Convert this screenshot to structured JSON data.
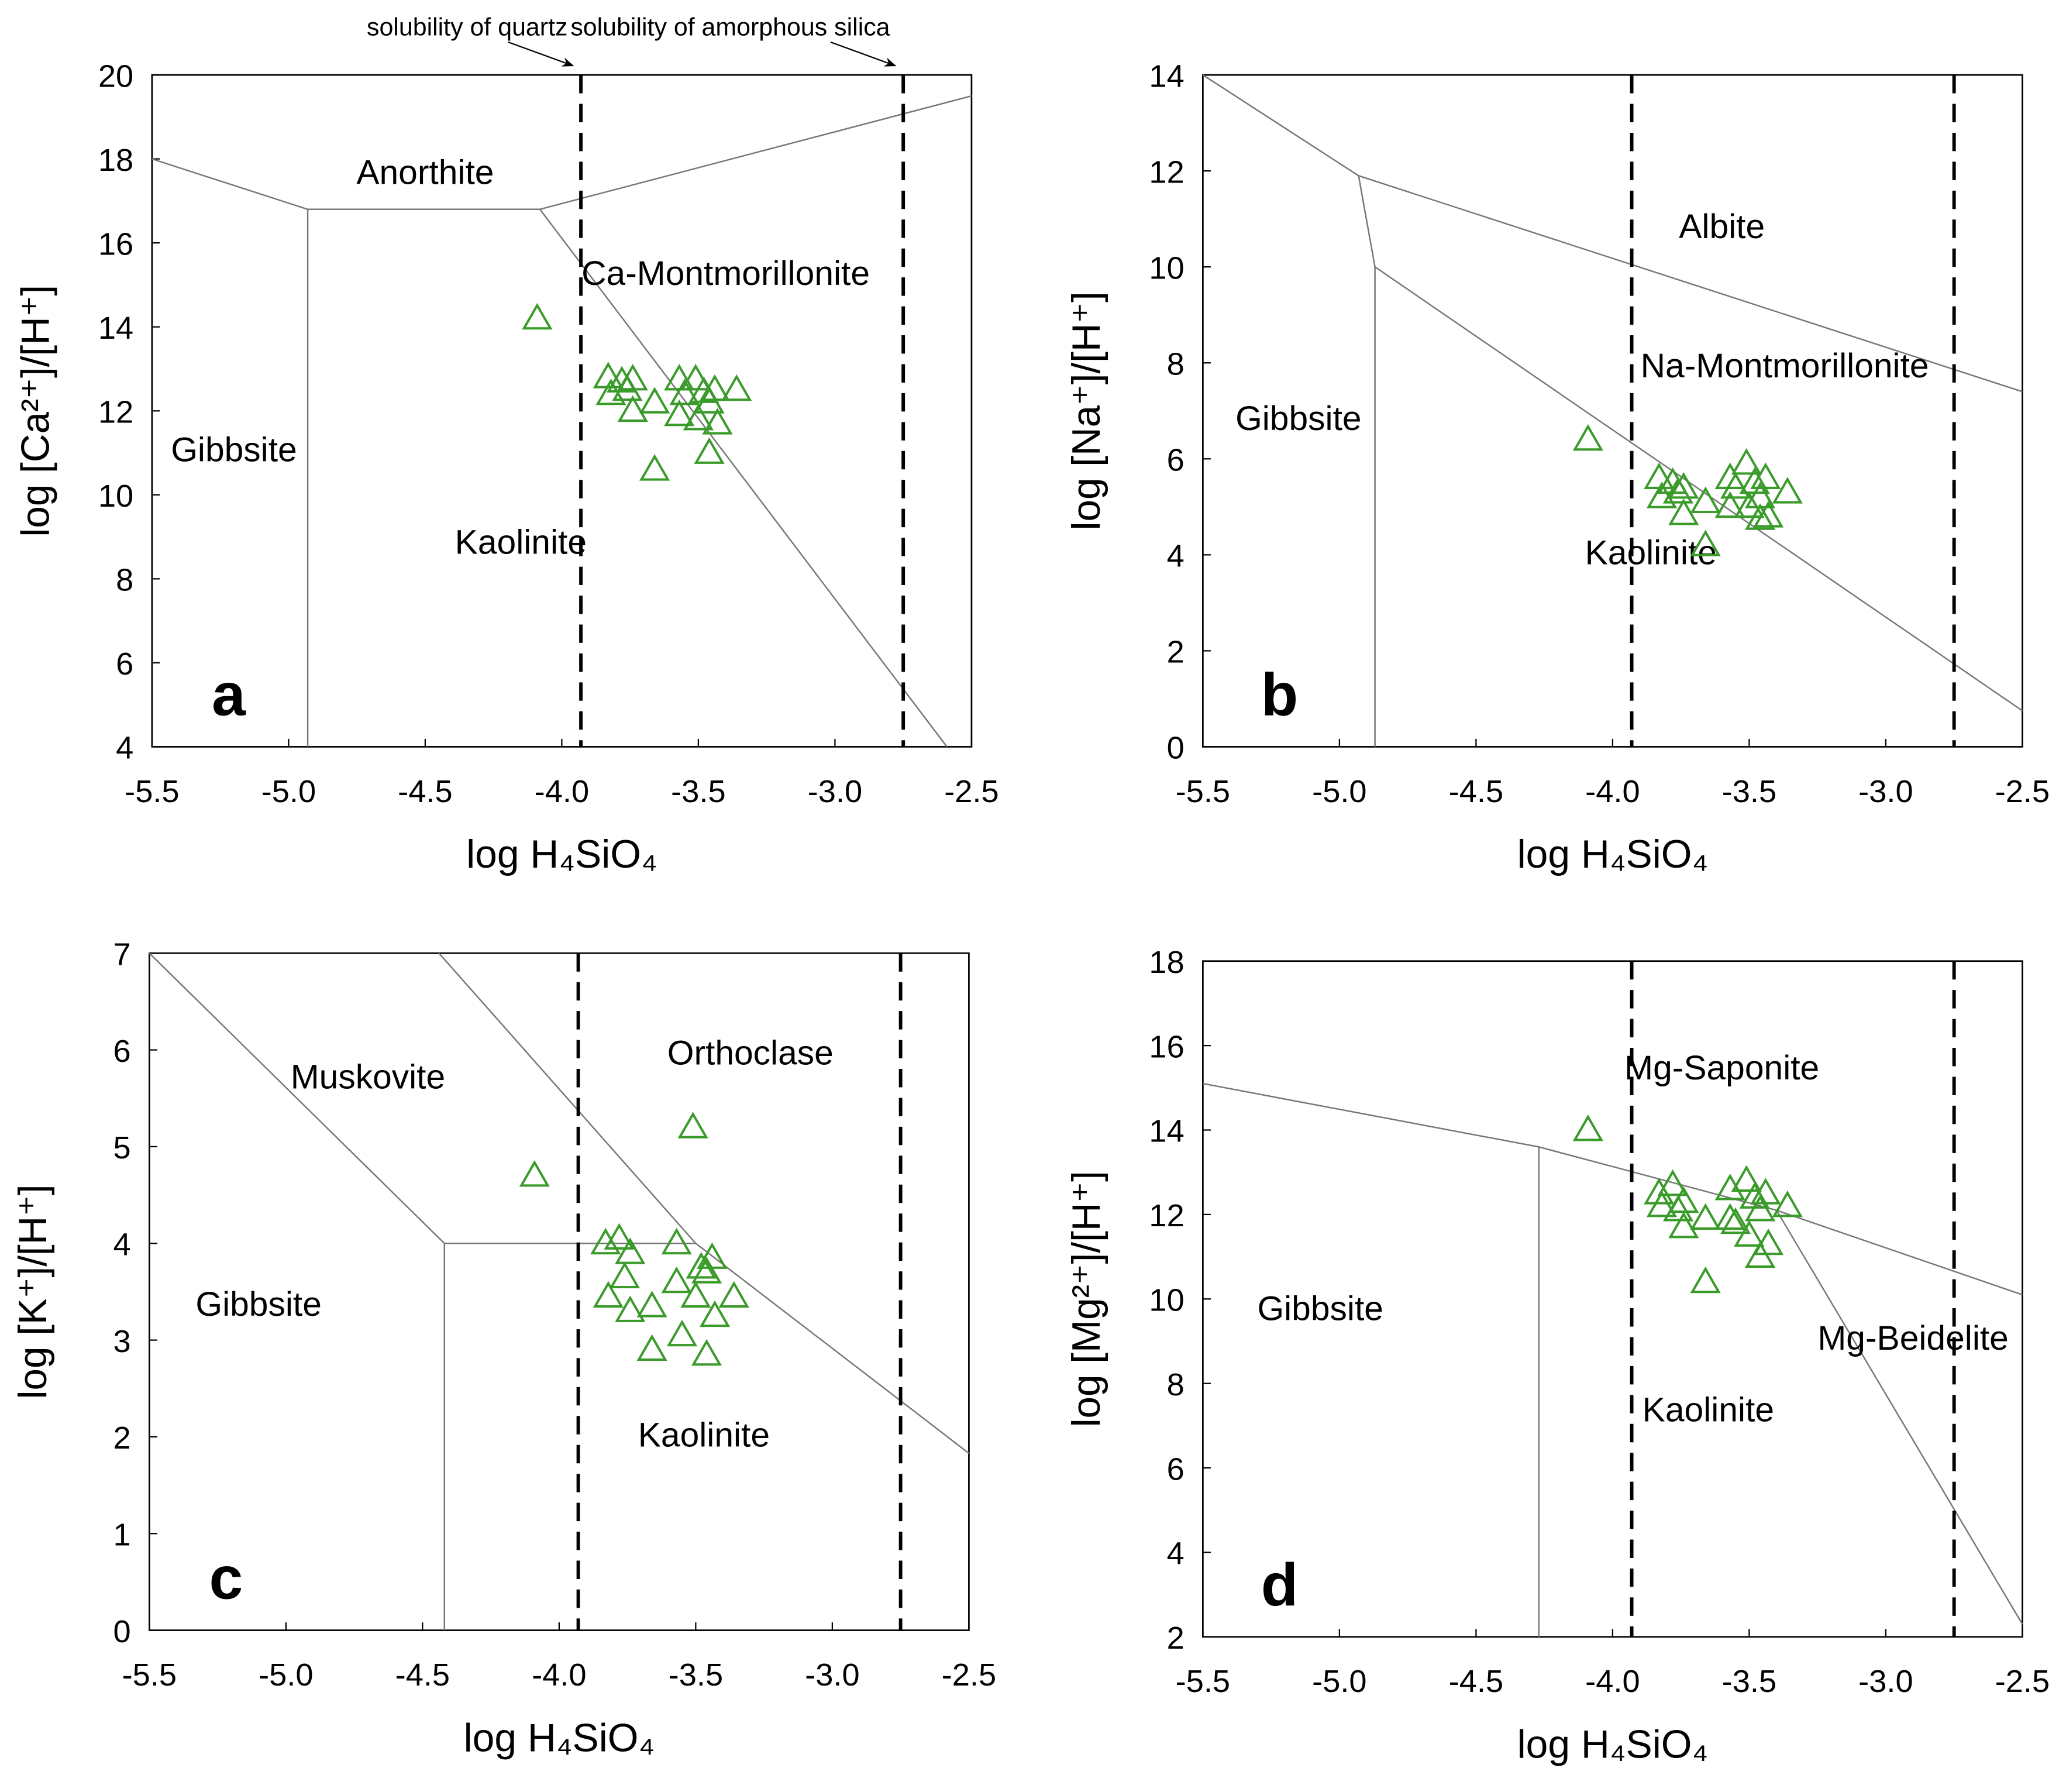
{
  "chart_data": [
    {
      "type": "scatter",
      "panel_label": "a",
      "xlabel": "log H₄SiO₄",
      "ylabel": "log [Ca²⁺]/[H⁺]",
      "xlim": [
        -5.5,
        -2.5
      ],
      "ylim": [
        4,
        20
      ],
      "xticks": [
        -5.5,
        {
          "value": -5,
          "label": "-5.0"
        },
        -4.5,
        {
          "value": -4,
          "label": "-4.0"
        },
        -3.5,
        {
          "value": -3,
          "label": "-3.0"
        },
        -2.5
      ],
      "yticks": [
        4,
        6,
        8,
        10,
        12,
        14,
        16,
        18,
        20
      ],
      "marker_color": "#3a9b2a",
      "x": [
        -4.09,
        -3.83,
        -3.82,
        -3.78,
        -3.74,
        -3.74,
        -3.76,
        -3.66,
        -3.66,
        -3.57,
        -3.55,
        -3.51,
        -3.5,
        -3.48,
        -3.46,
        -3.44,
        -3.43,
        -3.46,
        -3.36,
        -3.57
      ],
      "values": [
        14.2,
        12.8,
        12.4,
        12.7,
        12.75,
        12.0,
        12.5,
        12.2,
        10.6,
        12.75,
        12.4,
        12.75,
        11.8,
        12.45,
        12.2,
        12.5,
        11.7,
        11.0,
        12.5,
        11.9
      ],
      "vlines": [
        -3.93,
        -2.75
      ],
      "annotations": [
        {
          "text": "solubility of quartz",
          "x": -3.93
        },
        {
          "text": "solubility of amorphous silica",
          "x": -2.75
        }
      ],
      "boundaries": [
        {
          "x": [
            -5.5,
            -4.93,
            -4.08,
            -2.5
          ],
          "y": [
            18,
            16.8,
            16.8,
            19.5
          ]
        },
        {
          "x": [
            -4.93,
            -4.93
          ],
          "y": [
            16.8,
            4
          ]
        },
        {
          "x": [
            -4.08,
            -2.59
          ],
          "y": [
            16.8,
            4
          ]
        }
      ],
      "regions": [
        {
          "label": "Anorthite",
          "x": -4.5,
          "y": 17.4
        },
        {
          "label": "Ca-Montmorillonite",
          "x": -3.4,
          "y": 15.0
        },
        {
          "label": "Gibbsite",
          "x": -5.2,
          "y": 10.8
        },
        {
          "label": "Kaolinite",
          "x": -4.15,
          "y": 8.6
        }
      ]
    },
    {
      "type": "scatter",
      "panel_label": "b",
      "xlabel": "log H₄SiO₄",
      "ylabel": "log [Na⁺]/[H⁺]",
      "xlim": [
        -5.5,
        -2.5
      ],
      "ylim": [
        0,
        14
      ],
      "xticks": [
        -5.5,
        {
          "value": -5,
          "label": "-5.0"
        },
        -4.5,
        {
          "value": -4,
          "label": "-4.0"
        },
        -3.5,
        {
          "value": -3,
          "label": "-3.0"
        },
        -2.5
      ],
      "yticks": [
        0,
        2,
        4,
        6,
        8,
        10,
        12,
        14
      ],
      "marker_color": "#3a9b2a",
      "x": [
        -4.09,
        -3.83,
        -3.82,
        -3.78,
        -3.74,
        -3.74,
        -3.76,
        -3.66,
        -3.66,
        -3.57,
        -3.55,
        -3.51,
        -3.5,
        -3.48,
        -3.46,
        -3.44,
        -3.43,
        -3.46,
        -3.36,
        -3.57
      ],
      "values": [
        6.4,
        5.6,
        5.2,
        5.5,
        5.4,
        4.85,
        5.3,
        5.1,
        4.2,
        5.6,
        5.4,
        5.9,
        5.0,
        5.5,
        5.2,
        5.6,
        4.8,
        4.75,
        5.3,
        5.0
      ],
      "vlines": [
        -3.93,
        -2.75
      ],
      "boundaries": [
        {
          "x": [
            -5.5,
            -4.93,
            -2.5
          ],
          "y": [
            14,
            11.9,
            7.4
          ]
        },
        {
          "x": [
            -4.93,
            -4.87,
            -2.5
          ],
          "y": [
            11.9,
            10,
            0.75
          ]
        },
        {
          "x": [
            -4.87,
            -4.87
          ],
          "y": [
            10,
            0
          ]
        }
      ],
      "regions": [
        {
          "label": "Albite",
          "x": -3.6,
          "y": 10.6
        },
        {
          "label": "Na-Montmorillonite",
          "x": -3.37,
          "y": 7.7
        },
        {
          "label": "Gibbsite",
          "x": -5.15,
          "y": 6.6
        },
        {
          "label": "Kaolinite",
          "x": -3.86,
          "y": 3.8
        }
      ]
    },
    {
      "type": "scatter",
      "panel_label": "c",
      "xlabel": "log H₄SiO₄",
      "ylabel": "log [K⁺]/[H⁺]",
      "xlim": [
        -5.5,
        -2.5
      ],
      "ylim": [
        0,
        7
      ],
      "xticks": [
        -5.5,
        {
          "value": -5,
          "label": "-5.0"
        },
        -4.5,
        {
          "value": -4,
          "label": "-4.0"
        },
        -3.5,
        {
          "value": -3,
          "label": "-3.0"
        },
        -2.5
      ],
      "yticks": [
        0,
        1,
        2,
        3,
        4,
        5,
        6,
        7
      ],
      "marker_color": "#3a9b2a",
      "x": [
        -4.09,
        -3.83,
        -3.82,
        -3.78,
        -3.74,
        -3.74,
        -3.76,
        -3.66,
        -3.66,
        -3.57,
        -3.55,
        -3.51,
        -3.5,
        -3.48,
        -3.46,
        -3.44,
        -3.43,
        -3.46,
        -3.36,
        -3.57
      ],
      "values": [
        4.7,
        4.0,
        3.45,
        4.05,
        3.9,
        3.3,
        3.65,
        3.35,
        2.9,
        4.0,
        3.05,
        5.2,
        3.45,
        3.75,
        3.7,
        3.85,
        3.25,
        2.85,
        3.45,
        3.6
      ],
      "vlines": [
        -3.93,
        -2.75
      ],
      "boundaries": [
        {
          "x": [
            -5.5,
            -4.42,
            -3.5
          ],
          "y": [
            7,
            4,
            4
          ]
        },
        {
          "x": [
            -4.44,
            -3.5,
            -2.5
          ],
          "y": [
            7,
            4,
            1.83
          ]
        },
        {
          "x": [
            -4.42,
            -4.42
          ],
          "y": [
            4,
            0
          ]
        }
      ],
      "regions": [
        {
          "label": "Muskovite",
          "x": -4.7,
          "y": 5.6
        },
        {
          "label": "Orthoclase",
          "x": -3.3,
          "y": 5.85
        },
        {
          "label": "Gibbsite",
          "x": -5.1,
          "y": 3.25
        },
        {
          "label": "Kaolinite",
          "x": -3.47,
          "y": 1.9
        }
      ]
    },
    {
      "type": "scatter",
      "panel_label": "d",
      "xlabel": "log H₄SiO₄",
      "ylabel": "log [Mg²⁺]/[H⁺]",
      "xlim": [
        -5.5,
        -2.5
      ],
      "ylim": [
        2,
        18
      ],
      "xticks": [
        -5.5,
        {
          "value": -5,
          "label": "-5.0"
        },
        -4.5,
        {
          "value": -4,
          "label": "-4.0"
        },
        -3.5,
        {
          "value": -3,
          "label": "-3.0"
        },
        -2.5
      ],
      "yticks": [
        2,
        4,
        6,
        8,
        10,
        12,
        14,
        16,
        18
      ],
      "marker_color": "#3a9b2a",
      "x": [
        -4.09,
        -3.83,
        -3.82,
        -3.78,
        -3.74,
        -3.74,
        -3.76,
        -3.66,
        -3.66,
        -3.57,
        -3.55,
        -3.51,
        -3.5,
        -3.48,
        -3.46,
        -3.44,
        -3.43,
        -3.46,
        -3.36,
        -3.57
      ],
      "values": [
        14.0,
        12.5,
        12.2,
        12.7,
        12.3,
        11.7,
        12.1,
        11.9,
        10.4,
        12.6,
        11.8,
        12.8,
        11.5,
        12.4,
        12.1,
        12.5,
        11.3,
        11.0,
        12.2,
        11.9
      ],
      "vlines": [
        -3.93,
        -2.75
      ],
      "boundaries": [
        {
          "x": [
            -5.5,
            -4.27,
            -3.4,
            -2.5
          ],
          "y": [
            15.1,
            13.6,
            12.1,
            10.1
          ]
        },
        {
          "x": [
            -4.27,
            -4.27
          ],
          "y": [
            13.6,
            2
          ]
        },
        {
          "x": [
            -3.4,
            -2.5
          ],
          "y": [
            12.1,
            2.3
          ]
        }
      ],
      "regions": [
        {
          "label": "Mg-Saponite",
          "x": -3.6,
          "y": 15.2
        },
        {
          "label": "Gibbsite",
          "x": -5.07,
          "y": 9.5
        },
        {
          "label": "Mg-Beidelite",
          "x": -2.9,
          "y": 8.8
        },
        {
          "label": "Kaolinite",
          "x": -3.65,
          "y": 7.1
        }
      ]
    }
  ]
}
